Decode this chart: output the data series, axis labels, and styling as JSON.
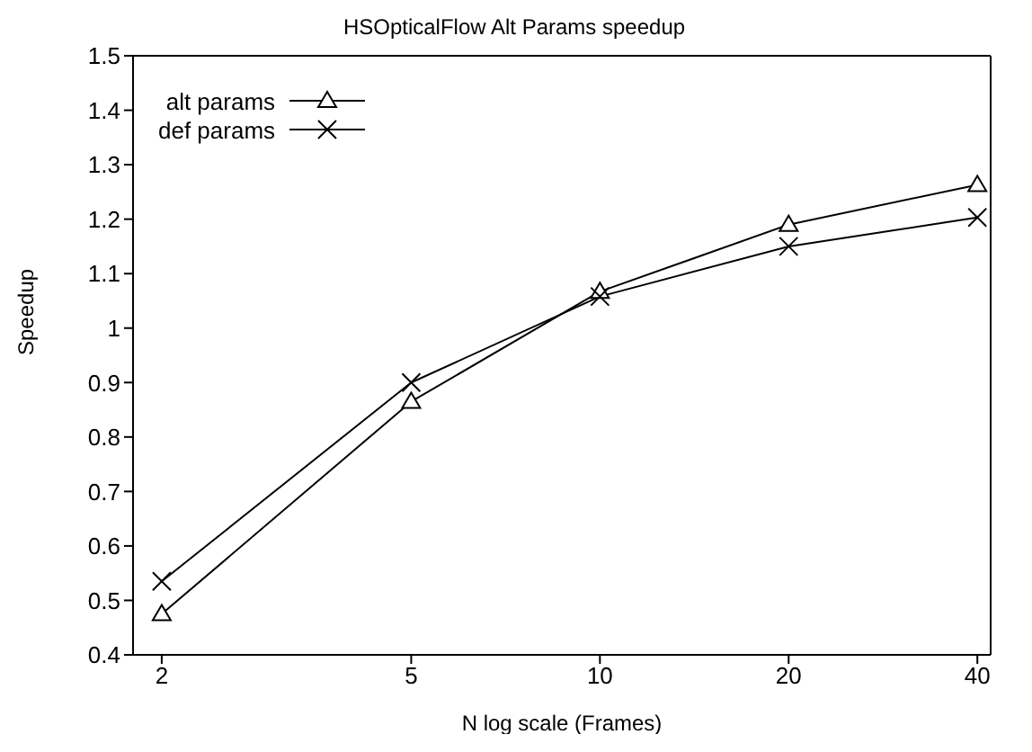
{
  "chart_data": {
    "type": "line",
    "title": "HSOpticalFlow Alt Params speedup",
    "xlabel": "N log scale (Frames)",
    "ylabel": "Speedup",
    "x": [
      2,
      5,
      10,
      20,
      40
    ],
    "log": "x",
    "xlim": [
      1.8,
      42
    ],
    "xticks": [
      2,
      5,
      10,
      20,
      40
    ],
    "ylim": [
      0.4,
      1.5
    ],
    "yticks": [
      0.4,
      0.5,
      0.6,
      0.7,
      0.8,
      0.9,
      1,
      1.1,
      1.2,
      1.3,
      1.4,
      1.5
    ],
    "grid": false,
    "legend": "top left",
    "line_style": "solid",
    "series": [
      {
        "name": "alt params",
        "color": "#000000",
        "marker": "triangle",
        "values": [
          0.475,
          0.865,
          1.067,
          1.19,
          1.263
        ]
      },
      {
        "name": "def params",
        "color": "#000000",
        "marker": "cross",
        "values": [
          0.535,
          0.9,
          1.058,
          1.15,
          1.203
        ]
      }
    ]
  }
}
